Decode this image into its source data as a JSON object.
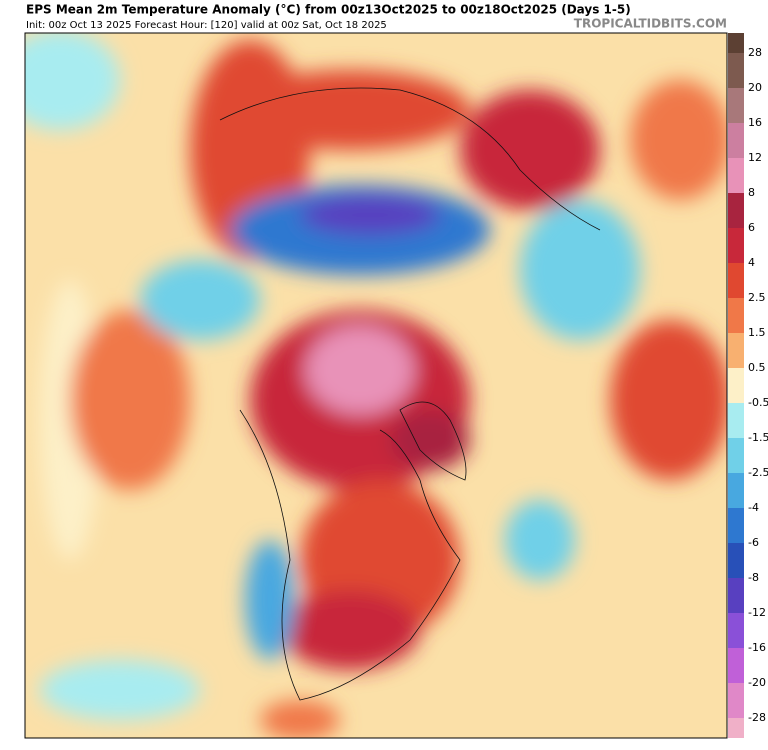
{
  "header": {
    "title": "EPS Mean 2m Temperature Anomaly (°C) from 00z13Oct2025 to 00z18Oct2025 (Days 1-5)",
    "subtitle": "Init: 00z Oct 13 2025   Forecast Hour: [120]   valid at 00z Sat, Oct 18 2025",
    "brand": "TROPICALTIDBITS.COM"
  },
  "colorbar": {
    "labels": [
      28,
      20,
      16,
      12,
      8,
      6,
      4,
      2.5,
      1.5,
      0.5,
      -0.5,
      -1.5,
      -2.5,
      -4,
      -6,
      -8,
      -12,
      -16,
      -20,
      -28
    ],
    "colors": [
      "#5c4033",
      "#7d5a4f",
      "#a8787a",
      "#cc7fa0",
      "#e892b8",
      "#a8243f",
      "#c8283a",
      "#e04830",
      "#f07848",
      "#f8b070",
      "#fdf0c8",
      "#a8ecf0",
      "#70d0e8",
      "#48a8e0",
      "#2e78d0",
      "#2850b8",
      "#5840c0",
      "#8a50d8",
      "#c060d8",
      "#e088c8",
      "#f0b0c8"
    ]
  }
}
